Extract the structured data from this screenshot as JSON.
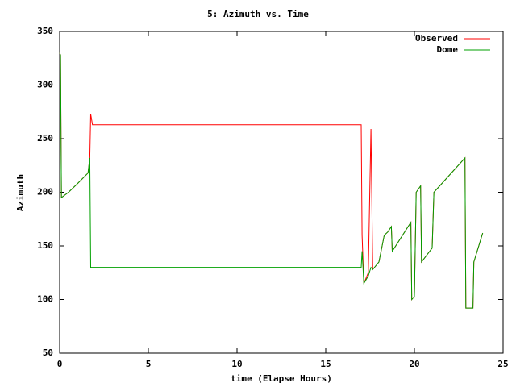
{
  "chart_data": {
    "type": "line",
    "title": "5: Azimuth vs. Time",
    "x_label": "time (Elapse Hours)",
    "y_label": "Azimuth",
    "x": [
      0,
      0.05,
      0.1,
      0.5,
      1.0,
      1.6,
      1.7,
      1.75,
      1.85,
      17.0,
      17.05,
      17.15,
      17.4,
      17.55,
      17.65,
      18.0,
      18.3,
      18.5,
      18.7,
      18.75,
      19.8,
      19.85,
      20.0,
      20.1,
      20.35,
      20.4,
      21.0,
      21.1,
      22.85,
      22.9,
      23.3,
      23.35,
      23.85
    ],
    "series": [
      {
        "name": "Observed",
        "color": "#ff0000",
        "values": [
          330,
          328,
          195,
          200,
          208,
          218,
          232,
          273,
          263,
          263,
          160,
          115,
          125,
          259,
          128,
          135,
          160,
          163,
          168,
          145,
          172,
          100,
          103,
          200,
          206,
          135,
          148,
          200,
          232,
          92,
          92,
          135,
          162
        ]
      },
      {
        "name": "Dome",
        "color": "#00a000",
        "values": [
          330,
          328,
          195,
          200,
          208,
          218,
          232,
          130,
          130,
          130,
          145,
          115,
          122,
          130,
          128,
          135,
          160,
          163,
          168,
          145,
          172,
          100,
          103,
          200,
          206,
          135,
          148,
          200,
          232,
          92,
          92,
          135,
          162
        ]
      }
    ],
    "xlim": [
      0,
      25
    ],
    "xticks": [
      0,
      5,
      10,
      15,
      20,
      25
    ],
    "ylim": [
      50,
      350
    ],
    "yticks": [
      50,
      100,
      150,
      200,
      250,
      300,
      350
    ],
    "legend": "top-right",
    "grid": false
  }
}
